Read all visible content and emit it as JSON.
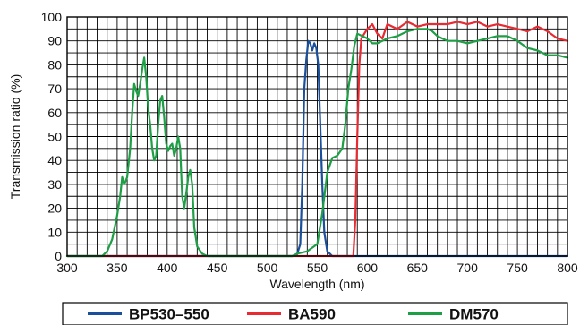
{
  "chart_data": {
    "type": "line",
    "title": "",
    "xlabel": "Wavelength (nm)",
    "ylabel": "Transmission ratio (%)",
    "xlim": [
      300,
      800
    ],
    "ylim": [
      0,
      100
    ],
    "x_ticks": [
      300,
      350,
      400,
      450,
      500,
      550,
      600,
      650,
      700,
      750,
      800
    ],
    "y_ticks": [
      0,
      10,
      20,
      30,
      40,
      50,
      60,
      70,
      80,
      90,
      100
    ],
    "x_grid_step": 10,
    "y_grid_step": 5,
    "grid": true,
    "legend_position": "bottom",
    "series": [
      {
        "name": "BP530–550",
        "color": "#1a4f9c",
        "points": [
          [
            300,
            0
          ],
          [
            525,
            0
          ],
          [
            530,
            1
          ],
          [
            533,
            5
          ],
          [
            535,
            30
          ],
          [
            537,
            70
          ],
          [
            539,
            82
          ],
          [
            541,
            90
          ],
          [
            543,
            89
          ],
          [
            545,
            86
          ],
          [
            547,
            89
          ],
          [
            549,
            87
          ],
          [
            551,
            80
          ],
          [
            553,
            55
          ],
          [
            555,
            30
          ],
          [
            557,
            10
          ],
          [
            560,
            2
          ],
          [
            565,
            0
          ],
          [
            800,
            0
          ]
        ]
      },
      {
        "name": "BA590",
        "color": "#e82a32",
        "points": [
          [
            300,
            0
          ],
          [
            586,
            0
          ],
          [
            588,
            15
          ],
          [
            590,
            50
          ],
          [
            592,
            80
          ],
          [
            594,
            91
          ],
          [
            597,
            93
          ],
          [
            600,
            95
          ],
          [
            605,
            97
          ],
          [
            610,
            93
          ],
          [
            615,
            91
          ],
          [
            620,
            97
          ],
          [
            630,
            95
          ],
          [
            640,
            98
          ],
          [
            650,
            96
          ],
          [
            660,
            97
          ],
          [
            670,
            97
          ],
          [
            680,
            97
          ],
          [
            690,
            98
          ],
          [
            700,
            97
          ],
          [
            710,
            98
          ],
          [
            720,
            96
          ],
          [
            730,
            97
          ],
          [
            740,
            96
          ],
          [
            750,
            95
          ],
          [
            760,
            94
          ],
          [
            770,
            96
          ],
          [
            780,
            94
          ],
          [
            790,
            91
          ],
          [
            800,
            90
          ]
        ]
      },
      {
        "name": "DM570",
        "color": "#1e9e45",
        "points": [
          [
            300,
            0
          ],
          [
            335,
            0
          ],
          [
            340,
            2
          ],
          [
            345,
            7
          ],
          [
            350,
            17
          ],
          [
            353,
            25
          ],
          [
            355,
            33
          ],
          [
            357,
            30
          ],
          [
            360,
            33
          ],
          [
            363,
            45
          ],
          [
            365,
            60
          ],
          [
            367,
            72
          ],
          [
            369,
            69
          ],
          [
            371,
            67
          ],
          [
            373,
            72
          ],
          [
            375,
            78
          ],
          [
            377,
            83
          ],
          [
            379,
            75
          ],
          [
            381,
            62
          ],
          [
            383,
            55
          ],
          [
            385,
            45
          ],
          [
            387,
            40
          ],
          [
            389,
            42
          ],
          [
            391,
            55
          ],
          [
            393,
            65
          ],
          [
            395,
            67
          ],
          [
            397,
            58
          ],
          [
            399,
            47
          ],
          [
            401,
            44
          ],
          [
            403,
            46
          ],
          [
            405,
            47
          ],
          [
            407,
            42
          ],
          [
            409,
            45
          ],
          [
            411,
            50
          ],
          [
            413,
            45
          ],
          [
            415,
            25
          ],
          [
            417,
            20
          ],
          [
            419,
            26
          ],
          [
            421,
            33
          ],
          [
            423,
            36
          ],
          [
            425,
            30
          ],
          [
            427,
            12
          ],
          [
            430,
            4
          ],
          [
            435,
            1
          ],
          [
            440,
            0
          ],
          [
            525,
            0
          ],
          [
            530,
            1
          ],
          [
            540,
            2
          ],
          [
            550,
            5
          ],
          [
            555,
            18
          ],
          [
            560,
            35
          ],
          [
            565,
            41
          ],
          [
            570,
            42
          ],
          [
            575,
            45
          ],
          [
            578,
            55
          ],
          [
            581,
            70
          ],
          [
            584,
            78
          ],
          [
            587,
            88
          ],
          [
            590,
            93
          ],
          [
            595,
            92
          ],
          [
            600,
            91
          ],
          [
            605,
            89
          ],
          [
            610,
            89
          ],
          [
            615,
            90
          ],
          [
            620,
            91
          ],
          [
            630,
            92
          ],
          [
            640,
            94
          ],
          [
            650,
            95
          ],
          [
            660,
            95
          ],
          [
            665,
            94
          ],
          [
            670,
            92
          ],
          [
            680,
            90
          ],
          [
            690,
            90
          ],
          [
            700,
            89
          ],
          [
            710,
            90
          ],
          [
            720,
            91
          ],
          [
            730,
            92
          ],
          [
            740,
            92
          ],
          [
            750,
            90
          ],
          [
            760,
            87
          ],
          [
            770,
            86
          ],
          [
            780,
            84
          ],
          [
            790,
            84
          ],
          [
            800,
            83
          ]
        ]
      }
    ]
  }
}
